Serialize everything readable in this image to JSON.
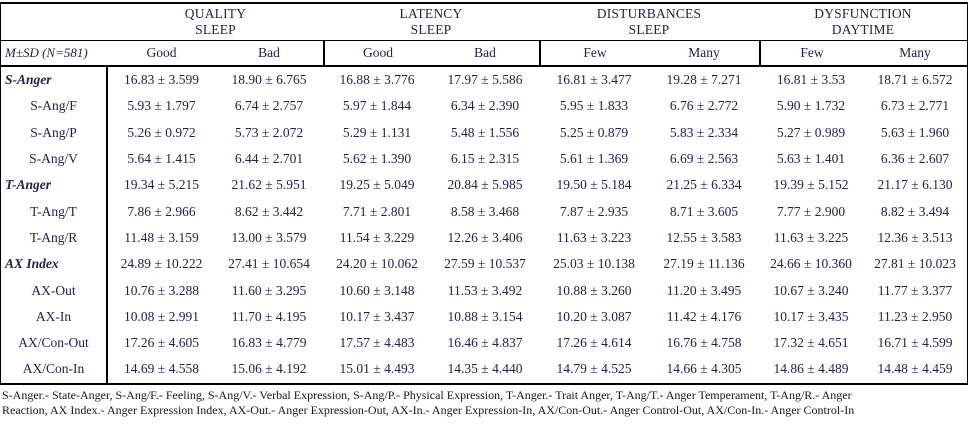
{
  "colors": {
    "ink": "#22224e",
    "border": "#000000",
    "background": "#ffffff"
  },
  "table": {
    "corner_label": "M±SD (N=581)",
    "groups": [
      {
        "title_line1": "QUALITY",
        "title_line2": "SLEEP",
        "columns": [
          "Good",
          "Bad"
        ]
      },
      {
        "title_line1": "LATENCY",
        "title_line2": "SLEEP",
        "columns": [
          "Good",
          "Bad"
        ]
      },
      {
        "title_line1": "DISTURBANCES",
        "title_line2": "SLEEP",
        "columns": [
          "Few",
          "Many"
        ]
      },
      {
        "title_line1": "DYSFUNCTION",
        "title_line2": "DAYTIME",
        "columns": [
          "Few",
          "Many"
        ]
      }
    ],
    "rows": [
      {
        "label": "S-Anger",
        "emphasis": true,
        "values": [
          "16.83 ± 3.599",
          "18.90 ± 6.765",
          "16.88 ± 3.776",
          "17.97 ± 5.586",
          "16.81 ± 3.477",
          "19.28 ± 7.271",
          "16.81 ± 3.53",
          "18.71 ± 6.572"
        ]
      },
      {
        "label": "S-Ang/F",
        "emphasis": false,
        "values": [
          "5.93 ± 1.797",
          "6.74 ± 2.757",
          "5.97 ± 1.844",
          "6.34 ± 2.390",
          "5.95 ± 1.833",
          "6.76 ± 2.772",
          "5.90 ± 1.732",
          "6.73 ± 2.771"
        ]
      },
      {
        "label": "S-Ang/P",
        "emphasis": false,
        "values": [
          "5.26 ± 0.972",
          "5.73 ± 2.072",
          "5.29 ± 1.131",
          "5.48 ± 1.556",
          "5.25 ± 0.879",
          "5.83 ± 2.334",
          "5.27 ± 0.989",
          "5.63 ± 1.960"
        ]
      },
      {
        "label": "S-Ang/V",
        "emphasis": false,
        "values": [
          "5.64 ± 1.415",
          "6.44 ± 2.701",
          "5.62 ± 1.390",
          "6.15 ± 2.315",
          "5.61 ± 1.369",
          "6.69 ± 2.563",
          "5.63 ± 1.401",
          "6.36 ± 2.607"
        ]
      },
      {
        "label": "T-Anger",
        "emphasis": true,
        "values": [
          "19.34 ± 5.215",
          "21.62 ± 5.951",
          "19.25 ± 5.049",
          "20.84 ± 5.985",
          "19.50 ± 5.184",
          "21.25 ± 6.334",
          "19.39 ± 5.152",
          "21.17 ± 6.130"
        ]
      },
      {
        "label": "T-Ang/T",
        "emphasis": false,
        "values": [
          "7.86 ± 2.966",
          "8.62 ± 3.442",
          "7.71 ± 2.801",
          "8.58 ± 3.468",
          "7.87 ± 2.935",
          "8.71 ± 3.605",
          "7.77 ± 2.900",
          "8.82 ± 3.494"
        ]
      },
      {
        "label": "T-Ang/R",
        "emphasis": false,
        "values": [
          "11.48 ± 3.159",
          "13.00 ± 3.579",
          "11.54 ± 3.229",
          "12.26 ± 3.406",
          "11.63 ± 3.223",
          "12.55 ± 3.583",
          "11.63 ± 3.225",
          "12.36 ± 3.513"
        ]
      },
      {
        "label": "AX Index",
        "emphasis": true,
        "values": [
          "24.89 ± 10.222",
          "27.41 ± 10.654",
          "24.20 ± 10.062",
          "27.59 ± 10.537",
          "25.03 ± 10.138",
          "27.19 ± 11.136",
          "24.66 ± 10.360",
          "27.81 ± 10.023"
        ]
      },
      {
        "label": "AX-Out",
        "emphasis": false,
        "values": [
          "10.76 ± 3.288",
          "11.60 ± 3.295",
          "10.60 ± 3.148",
          "11.53 ± 3.492",
          "10.88 ± 3.260",
          "11.20 ± 3.495",
          "10.67 ± 3.240",
          "11.77 ± 3.377"
        ]
      },
      {
        "label": "AX-In",
        "emphasis": false,
        "values": [
          "10.08 ± 2.991",
          "11.70 ± 4.195",
          "10.17 ± 3.437",
          "10.88 ± 3.154",
          "10.20 ± 3.087",
          "11.42 ± 4.176",
          "10.17 ± 3.435",
          "11.23 ± 2.950"
        ]
      },
      {
        "label": "AX/Con-Out",
        "emphasis": false,
        "values": [
          "17.26 ± 4.605",
          "16.83 ± 4.779",
          "17.57 ± 4.483",
          "16.46 ± 4.837",
          "17.26 ± 4.614",
          "16.76 ± 4.758",
          "17.32 ± 4.651",
          "16.71 ± 4.599"
        ]
      },
      {
        "label": "AX/Con-In",
        "emphasis": false,
        "values": [
          "14.69 ± 4.558",
          "15.06 ± 4.192",
          "15.01 ± 4.493",
          "14.35 ± 4.440",
          "14.79 ± 4.525",
          "14.66 ± 4.305",
          "14.86 ± 4.489",
          "14.48 ± 4.459"
        ]
      }
    ]
  },
  "footnote": {
    "line1": "S-Anger.- State-Anger, S-Ang/F.- Feeling, S-Ang/V.- Verbal Expression, S-Ang/P.- Physical Expression, T-Anger.- Trait Anger, T-Ang/T.- Anger Temperament, T-Ang/R.- Anger",
    "line2": "Reaction, AX Index.- Anger Expression Index, AX-Out.- Anger Expression-Out, AX-In.- Anger Expression-In, AX/Con-Out.- Anger Control-Out, AX/Con-In.- Anger Control-In"
  }
}
